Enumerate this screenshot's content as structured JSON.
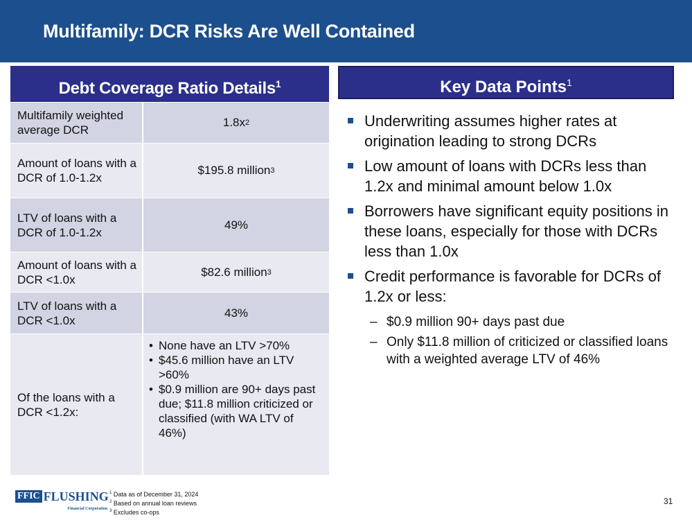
{
  "header": {
    "title": "Multifamily: DCR Risks Are Well Contained"
  },
  "left_panel": {
    "title": "Debt Coverage Ratio Details",
    "title_sup": "1",
    "rows": [
      {
        "label": "Multifamily weighted average DCR",
        "value": "1.8x",
        "sup": "2"
      },
      {
        "label": "Amount of loans with a DCR of 1.0-1.2x",
        "value": "$195.8 million",
        "sup": "3"
      },
      {
        "label": "LTV of loans with a DCR of 1.0-1.2x",
        "value": "49%",
        "sup": ""
      },
      {
        "label": "Amount of loans with a DCR <1.0x",
        "value": "$82.6 million",
        "sup": "3"
      },
      {
        "label": "LTV of loans with a DCR <1.0x",
        "value": "43%",
        "sup": ""
      }
    ],
    "last_row": {
      "label": "Of the loans with a DCR <1.2x:",
      "items": [
        "None have an LTV >70%",
        "$45.6 million have an LTV >60%",
        "$0.9 million are 90+ days past due; $11.8 million criticized or classified (with WA LTV of 46%)"
      ]
    }
  },
  "right_panel": {
    "title": "Key Data Points",
    "title_sup": "1",
    "bullets": [
      "Underwriting assumes higher rates at origination leading to strong DCRs",
      "Low amount of loans with DCRs less than 1.2x and minimal amount below 1.0x",
      "Borrowers have significant equity positions in these loans, especially for those with DCRs less than 1.0x",
      "Credit performance is favorable for DCRs of 1.2x or less:"
    ],
    "sub_bullets": [
      "$0.9 million 90+ days past due",
      "Only $11.8 million of criticized or classified loans with a weighted average LTV of 46%"
    ]
  },
  "footer": {
    "logo_ffic": "FFIC",
    "logo_name": "FLUSHING",
    "logo_sub": "Financial Corporation",
    "footnotes": [
      {
        "num": "1",
        "text": "Data as of December 31, 2024"
      },
      {
        "num": "2",
        "text": "Based on annual loan reviews"
      },
      {
        "num": "3",
        "text": "Excludes co-ops"
      }
    ],
    "page_number": "31"
  },
  "colors": {
    "header_bg": "#1c4f8e",
    "panel_header": "#2b2f8a",
    "row_dark": "#d2d4e3",
    "row_light": "#e8e9f1"
  }
}
